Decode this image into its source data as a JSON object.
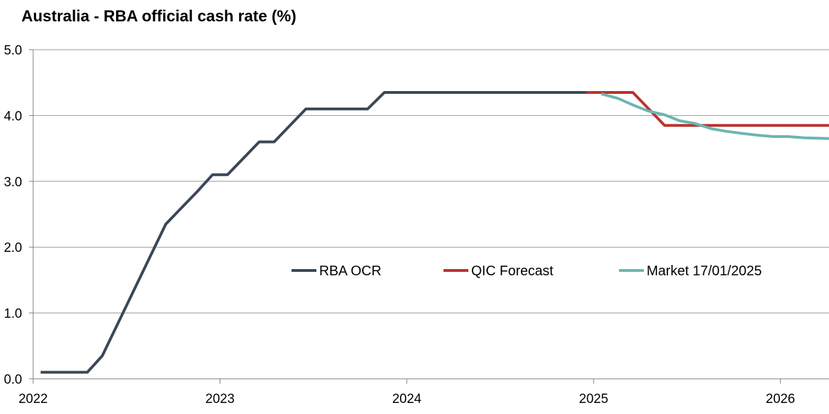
{
  "chart_data": {
    "type": "line",
    "title": "Australia - RBA official cash rate (%)",
    "xlabel": "",
    "ylabel": "",
    "xlim": [
      2022.0,
      2026.26
    ],
    "ylim": [
      0,
      5
    ],
    "yticks": [
      0,
      1,
      2,
      3,
      4,
      5
    ],
    "ytick_labels": [
      "0.0",
      "1.0",
      "2.0",
      "3.0",
      "4.0",
      "5.0"
    ],
    "xticks": [
      2022,
      2023,
      2024,
      2025,
      2026
    ],
    "xtick_labels": [
      "2022",
      "2023",
      "2024",
      "2025",
      "2026"
    ],
    "grid": "horizontal",
    "legend_position": "center",
    "series": [
      {
        "name": "RBA OCR",
        "color": "#3b4757",
        "x": [
          2022.04,
          2022.29,
          2022.37,
          2022.54,
          2022.71,
          2022.88,
          2022.96,
          2023.04,
          2023.21,
          2023.29,
          2023.46,
          2023.79,
          2023.88,
          2024.96
        ],
        "y": [
          0.1,
          0.1,
          0.35,
          1.35,
          2.35,
          2.85,
          3.1,
          3.1,
          3.6,
          3.6,
          4.1,
          4.1,
          4.35,
          4.35
        ]
      },
      {
        "name": "QIC Forecast",
        "color": "#b8332e",
        "x": [
          2024.96,
          2025.21,
          2025.38,
          2026.26
        ],
        "y": [
          4.35,
          4.35,
          3.85,
          3.85
        ]
      },
      {
        "name": "Market 17/01/2025",
        "color": "#6bb5b2",
        "x": [
          2025.04,
          2025.13,
          2025.21,
          2025.29,
          2025.38,
          2025.46,
          2025.54,
          2025.63,
          2025.71,
          2025.79,
          2025.88,
          2025.96,
          2026.04,
          2026.13,
          2026.26
        ],
        "y": [
          4.33,
          4.26,
          4.16,
          4.07,
          4.01,
          3.92,
          3.88,
          3.8,
          3.76,
          3.73,
          3.7,
          3.68,
          3.68,
          3.66,
          3.65
        ]
      }
    ]
  }
}
